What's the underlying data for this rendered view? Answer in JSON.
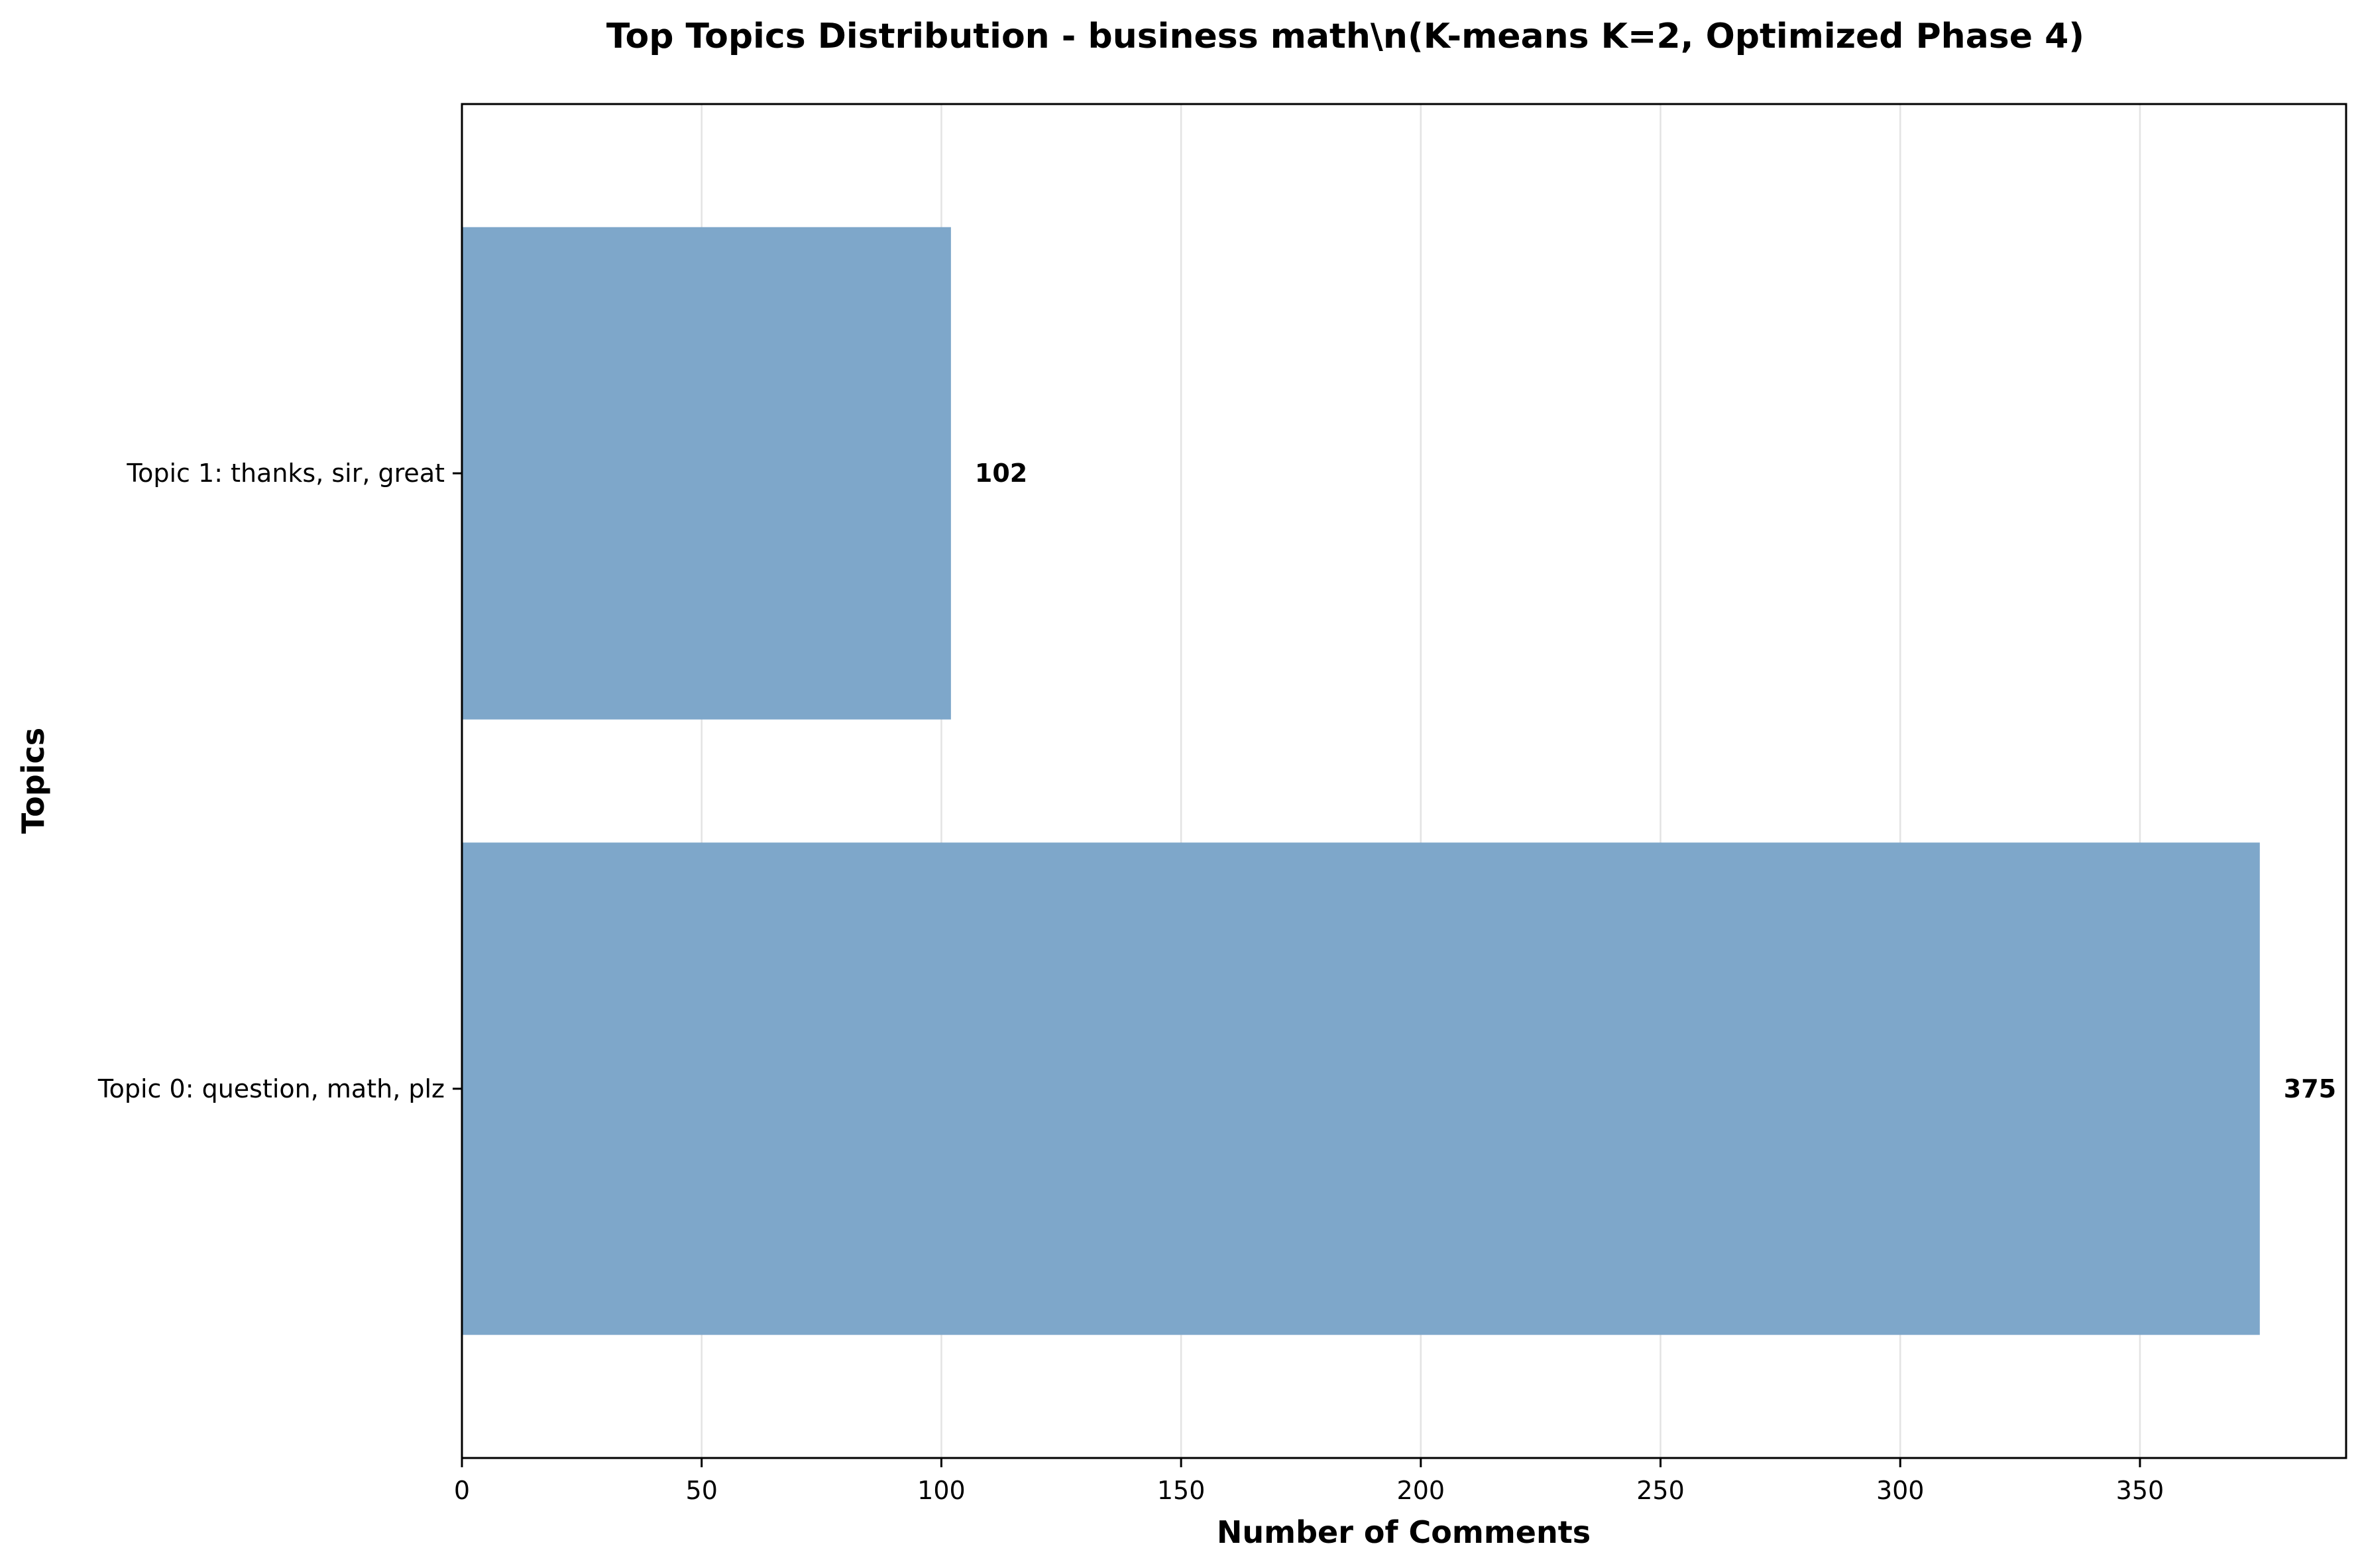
{
  "chart_data": {
    "type": "bar",
    "orientation": "horizontal",
    "title": "Top Topics Distribution - business math\\n(K-means K=2, Optimized Phase 4)",
    "xlabel": "Number of Comments",
    "ylabel": "Topics",
    "categories": [
      "Topic 0: question, math, plz",
      "Topic 1: thanks, sir, great"
    ],
    "values": [
      375,
      102
    ],
    "data_labels": [
      "375",
      "102"
    ],
    "xlim": [
      0,
      393
    ],
    "xticks": [
      0,
      50,
      100,
      150,
      200,
      250,
      300,
      350
    ],
    "grid": "x",
    "legend": "none",
    "bar_color": "#7ea7ca",
    "grid_color": "#e3e3e3"
  }
}
